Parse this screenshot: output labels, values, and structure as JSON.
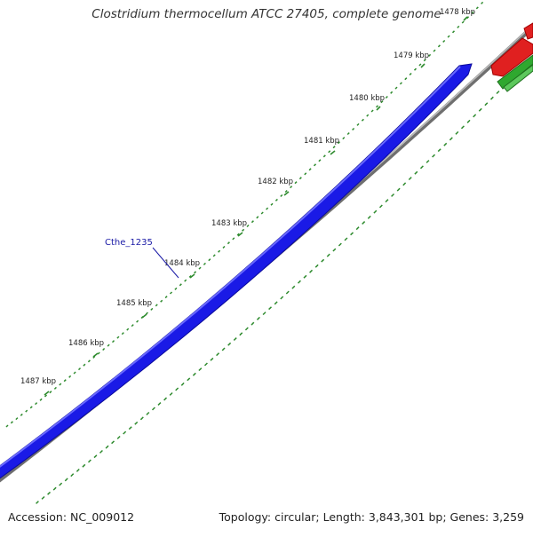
{
  "title": "Clostridium thermocellum ATCC 27405, complete genome",
  "footer": {
    "accession": "Accession: NC_009012",
    "summary": "Topology: circular; Length: 3,843,301 bp; Genes: 3,259"
  },
  "ticks": [
    "1478 kbp",
    "1479 kbp",
    "1480 kbp",
    "1481 kbp",
    "1482 kbp",
    "1483 kbp",
    "1484 kbp",
    "1485 kbp",
    "1486 kbp",
    "1487 kbp"
  ],
  "gene_label": "Cthe_1235",
  "colors": {
    "gene_forward": "#1a1ae6",
    "gene_other_strand": "#e02020",
    "gene_green": "#2fa82f",
    "backbone": "#888888",
    "gc_ticks": "#2e8b2e"
  }
}
